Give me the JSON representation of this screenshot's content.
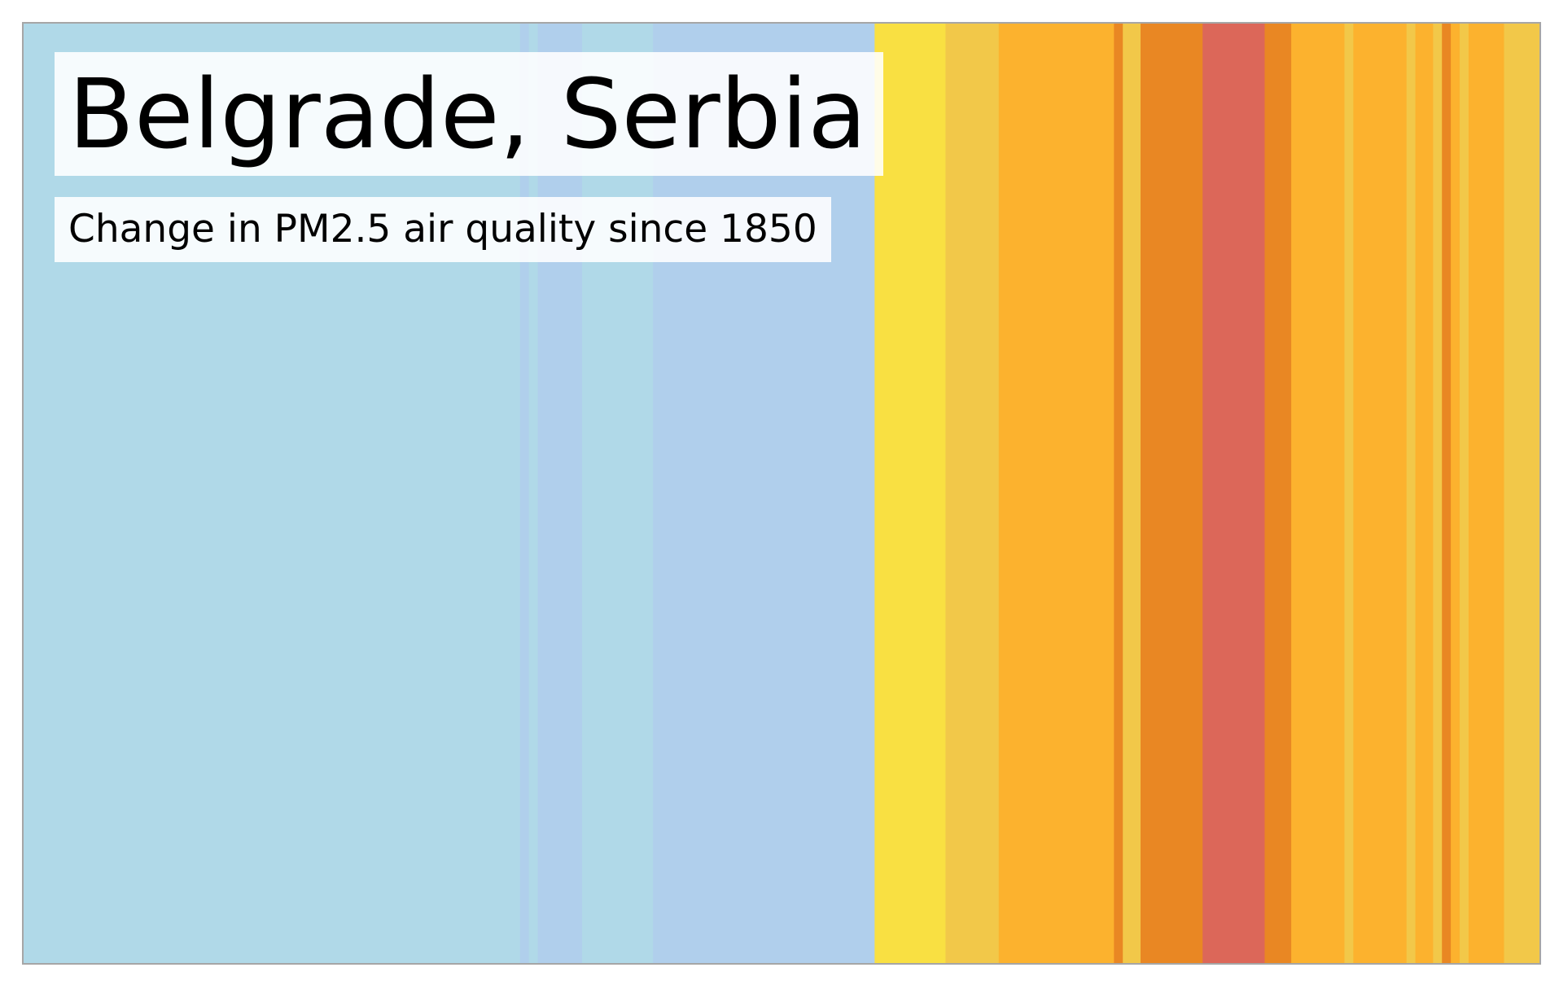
{
  "chart_data": {
    "type": "warming-stripes",
    "title": "Belgrade, Serbia",
    "subtitle": "Change in PM2.5 air quality since 1850",
    "x_range": [
      1850,
      2021
    ],
    "palette": {
      "light_blue": "#b0d9e8",
      "mid_blue": "#b0cfec",
      "yellow": "#f9e042",
      "gold": "#f2c849",
      "amber": "#fcb22e",
      "orange": "#e98723",
      "red": "#dc6759"
    },
    "stripes": [
      {
        "start": 1850,
        "end": 1906,
        "color": "#b0d9e8"
      },
      {
        "start": 1906,
        "end": 1907,
        "color": "#b0cfec"
      },
      {
        "start": 1907,
        "end": 1908,
        "color": "#b0d9e8"
      },
      {
        "start": 1908,
        "end": 1913,
        "color": "#b0cfec"
      },
      {
        "start": 1913,
        "end": 1921,
        "color": "#b0d9e8"
      },
      {
        "start": 1921,
        "end": 1946,
        "color": "#b0cfec"
      },
      {
        "start": 1946,
        "end": 1954,
        "color": "#f9e042"
      },
      {
        "start": 1954,
        "end": 1960,
        "color": "#f2c849"
      },
      {
        "start": 1960,
        "end": 1973,
        "color": "#fcb22e"
      },
      {
        "start": 1973,
        "end": 1974,
        "color": "#e98723"
      },
      {
        "start": 1974,
        "end": 1976,
        "color": "#f2c849"
      },
      {
        "start": 1976,
        "end": 1983,
        "color": "#e98723"
      },
      {
        "start": 1983,
        "end": 1990,
        "color": "#dc6759"
      },
      {
        "start": 1990,
        "end": 1993,
        "color": "#e98723"
      },
      {
        "start": 1993,
        "end": 1999,
        "color": "#fcb22e"
      },
      {
        "start": 1999,
        "end": 2000,
        "color": "#f2c849"
      },
      {
        "start": 2000,
        "end": 2006,
        "color": "#fcb22e"
      },
      {
        "start": 2006,
        "end": 2007,
        "color": "#f2c849"
      },
      {
        "start": 2007,
        "end": 2009,
        "color": "#fcb22e"
      },
      {
        "start": 2009,
        "end": 2010,
        "color": "#f2c849"
      },
      {
        "start": 2010,
        "end": 2011,
        "color": "#e98723"
      },
      {
        "start": 2011,
        "end": 2012,
        "color": "#fcb22e"
      },
      {
        "start": 2012,
        "end": 2013,
        "color": "#f2c849"
      },
      {
        "start": 2013,
        "end": 2017,
        "color": "#fcb22e"
      },
      {
        "start": 2017,
        "end": 2021,
        "color": "#f2c849"
      }
    ]
  }
}
